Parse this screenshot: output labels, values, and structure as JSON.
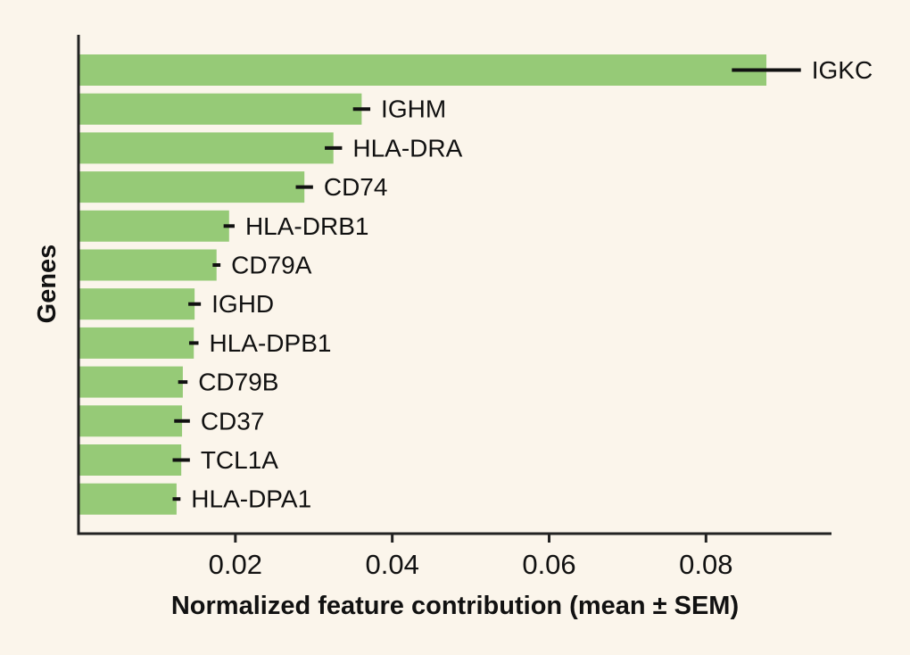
{
  "figure": {
    "background_color": "#fbf5eb",
    "bar_color": "#96ca77",
    "axis_line_color": "#222222",
    "error_bar_color": "#111111",
    "text_color": "#111111"
  },
  "chart_data": {
    "type": "bar",
    "orientation": "horizontal",
    "title": "",
    "xlabel": "Normalized feature contribution (mean ± SEM)",
    "ylabel": "Genes",
    "xlim": [
      0,
      0.096
    ],
    "xticks": [
      0.02,
      0.04,
      0.06,
      0.08
    ],
    "xtick_labels": [
      "0.02",
      "0.04",
      "0.06",
      "0.08"
    ],
    "grid": false,
    "categories": [
      "IGKC",
      "IGHM",
      "HLA-DRA",
      "CD74",
      "HLA-DRB1",
      "CD79A",
      "IGHD",
      "HLA-DPB1",
      "CD79B",
      "CD37",
      "TCL1A",
      "HLA-DPA1"
    ],
    "series": [
      {
        "name": "Normalized feature contribution (mean)",
        "values": [
          0.0877,
          0.0361,
          0.0325,
          0.0288,
          0.0192,
          0.0176,
          0.0148,
          0.0147,
          0.0133,
          0.0132,
          0.0131,
          0.0125
        ],
        "sem": [
          0.0044,
          0.0011,
          0.0011,
          0.0011,
          0.0007,
          0.0005,
          0.0008,
          0.0006,
          0.0006,
          0.001,
          0.0011,
          0.0005
        ]
      }
    ],
    "bar_value_labels_position": "right-of-error-bar"
  }
}
